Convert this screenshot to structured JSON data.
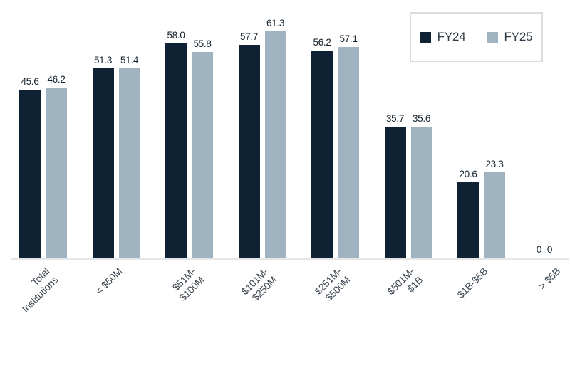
{
  "chart_data": {
    "type": "bar",
    "title": "",
    "xlabel": "",
    "ylabel": "",
    "categories": [
      "Total Institutions",
      "< $50M",
      "$51M-$100M",
      "$101M-$250M",
      "$251M-$500M",
      "$501M-$1B",
      "$1B-$5B",
      "> $5B"
    ],
    "category_lines": [
      [
        "Total",
        "Institutions"
      ],
      [
        "< $50M"
      ],
      [
        "$51M-",
        "$100M"
      ],
      [
        "$101M-",
        "$250M"
      ],
      [
        "$251M-",
        "$500M"
      ],
      [
        "$501M-",
        "$1B"
      ],
      [
        "$1B-$5B"
      ],
      [
        "> $5B"
      ]
    ],
    "series": [
      {
        "name": "FY24",
        "color": "#0e2233",
        "values": [
          45.6,
          51.3,
          58.0,
          57.7,
          56.2,
          35.7,
          20.6,
          0
        ],
        "labels": [
          "45.6",
          "51.3",
          "58.0",
          "57.7",
          "56.2",
          "35.7",
          "20.6",
          "0"
        ]
      },
      {
        "name": "FY25",
        "color": "#9fb3c1",
        "values": [
          46.2,
          51.4,
          55.8,
          61.3,
          57.1,
          35.6,
          23.3,
          0
        ],
        "labels": [
          "46.2",
          "51.4",
          "55.8",
          "61.3",
          "57.1",
          "35.6",
          "23.3",
          "0"
        ]
      }
    ],
    "ylim": [
      0,
      62
    ],
    "grid": false,
    "value_labels": true,
    "legend_position": "top-right"
  },
  "colors": {
    "fy24_bar": "#0e2233",
    "fy25_bar": "#9fb3c1",
    "axis_line": "#e6e6e6",
    "value_label_text": "#16242f",
    "axis_label_text": "#3d4752",
    "legend_border": "#dcdcdc",
    "legend_text": "#2e3a45",
    "background": "#ffffff"
  }
}
